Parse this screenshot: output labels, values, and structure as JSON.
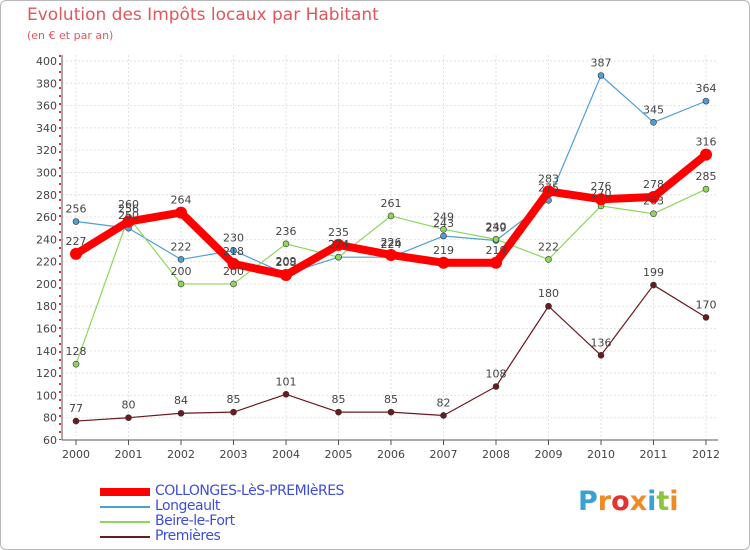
{
  "title": "Evolution des Impôts locaux par Habitant",
  "subtitle": "(en € et par an)",
  "logo_text": "Proxiti",
  "chart_data": {
    "type": "line",
    "title": "Evolution des Impôts locaux par Habitant",
    "subtitle": "(en € et par an)",
    "xlabel": "",
    "ylabel": "",
    "ylim": [
      60,
      400
    ],
    "yticks": [
      60,
      80,
      100,
      120,
      140,
      160,
      180,
      200,
      220,
      240,
      260,
      280,
      300,
      320,
      340,
      360,
      380,
      400
    ],
    "grid": true,
    "legend_position": "bottom-left",
    "categories": [
      "2000",
      "2001",
      "2002",
      "2003",
      "2004",
      "2005",
      "2006",
      "2007",
      "2008",
      "2009",
      "2010",
      "2011",
      "2012"
    ],
    "series": [
      {
        "name": "Longeault",
        "color": "#4f9fd5",
        "values": [
          256,
          250,
          222,
          230,
          209,
          224,
          224,
          243,
          239,
          275,
          387,
          345,
          364
        ],
        "labels": [
          "256",
          "250",
          "222",
          "230",
          "209",
          "224",
          "224",
          "243",
          "239",
          "275",
          "387",
          "345",
          "364"
        ]
      },
      {
        "name": "Beire-le-Fort",
        "color": "#8dd65a",
        "values": [
          128,
          260,
          200,
          200,
          236,
          224,
          261,
          249,
          240,
          222,
          270,
          263,
          285
        ],
        "labels": [
          "128",
          "260",
          "200",
          "200",
          "236",
          "224",
          "261",
          "249",
          "240",
          "222",
          "270",
          "263",
          "285"
        ]
      },
      {
        "name": "Premières",
        "color": "#6b1a1f",
        "values": [
          77,
          80,
          84,
          85,
          101,
          85,
          85,
          82,
          108,
          180,
          136,
          199,
          170
        ],
        "labels": [
          "77",
          "80",
          "84",
          "85",
          "101",
          "85",
          "85",
          "82",
          "108",
          "180",
          "136",
          "199",
          "170"
        ]
      },
      {
        "name": "COLLONGES-LèS-PREMIèRES",
        "color": "#ff0000",
        "values": [
          227,
          256,
          264,
          218,
          208,
          235,
          226,
          219,
          219,
          283,
          276,
          278,
          316
        ],
        "labels": [
          "227",
          "256",
          "264",
          "218",
          "208",
          "235",
          "226",
          "219",
          "219",
          "283",
          "276",
          "278",
          "316"
        ]
      }
    ]
  },
  "legend": [
    {
      "label": "COLLONGES-LèS-PREMIèRES",
      "color": "#ff0000"
    },
    {
      "label": "Longeault",
      "color": "#4f9fd5"
    },
    {
      "label": "Beire-le-Fort",
      "color": "#8dd65a"
    },
    {
      "label": "Premières",
      "color": "#6b1a1f"
    }
  ]
}
